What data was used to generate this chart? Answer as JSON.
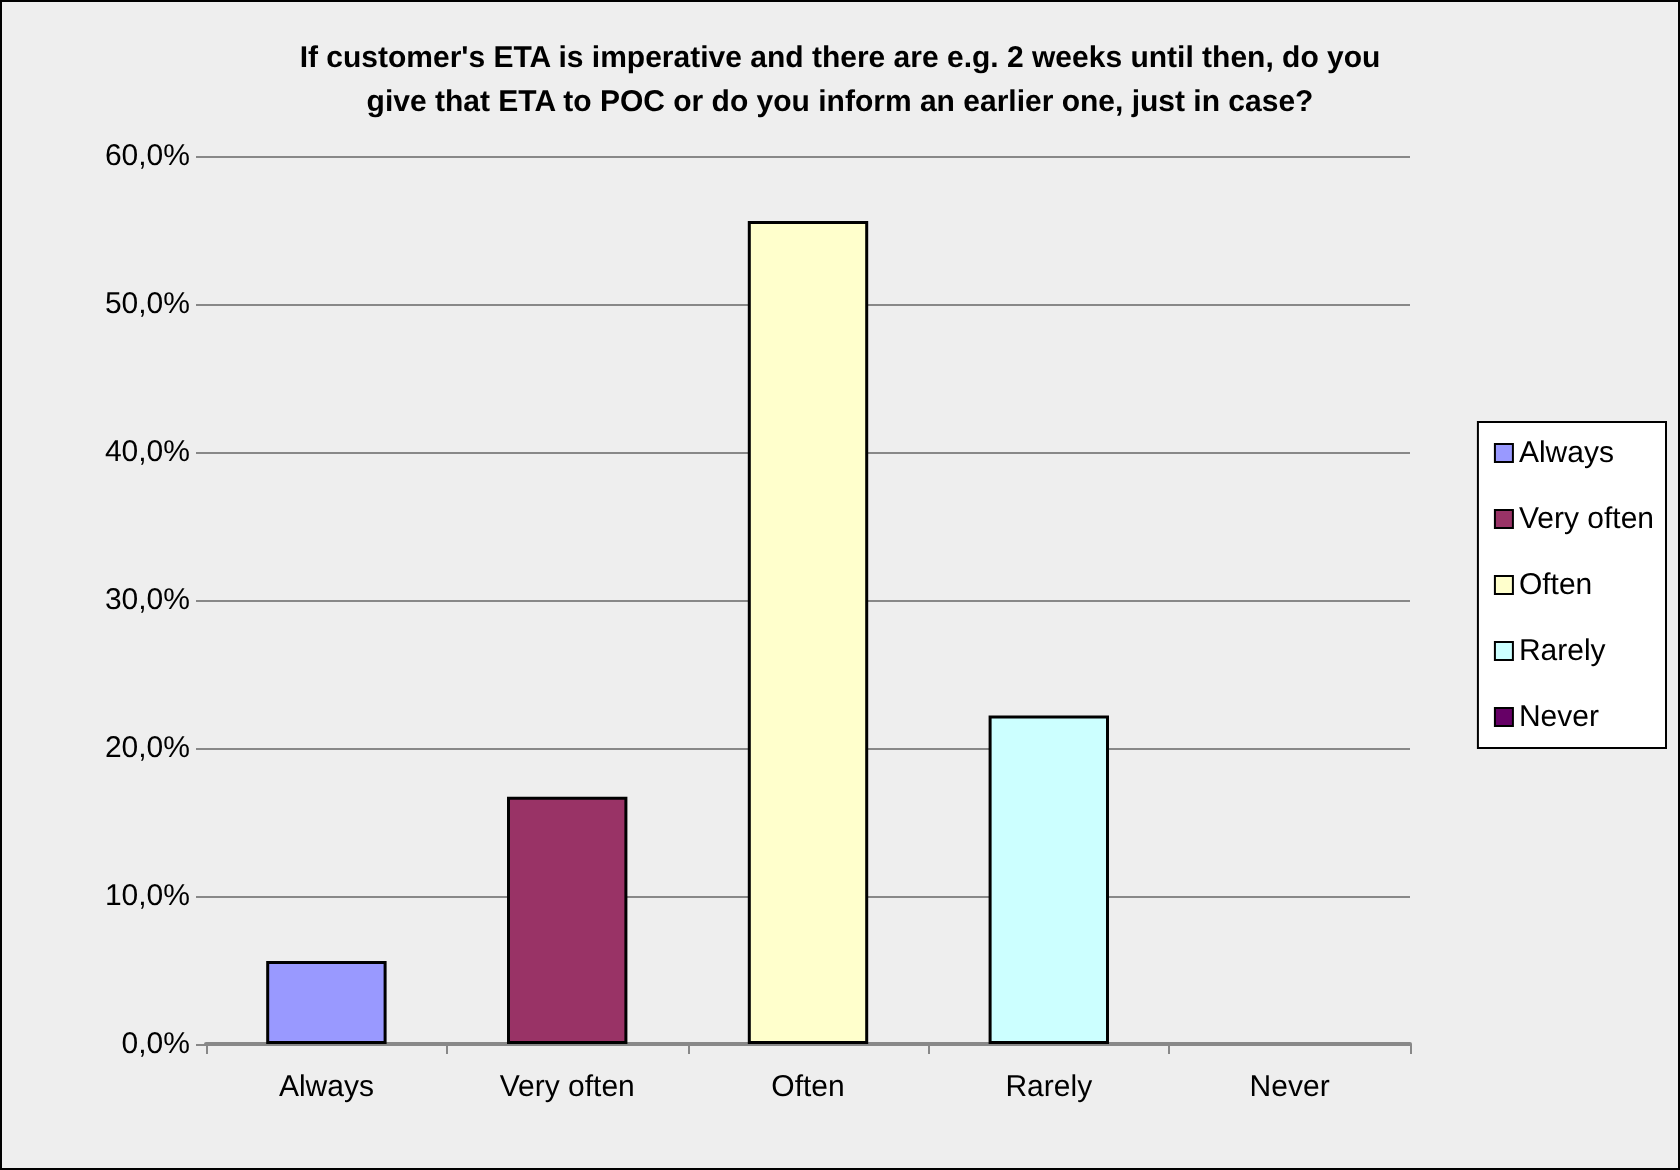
{
  "chart_data": {
    "type": "bar",
    "title": "If customer's ETA is imperative and there are e.g. 2 weeks until then, do you\ngive that ETA to POC or do you inform an earlier one, just in case?",
    "categories": [
      "Always",
      "Very often",
      "Often",
      "Rarely",
      "Never"
    ],
    "stacked": true,
    "series": [
      {
        "name": "Always",
        "color": "#9999ff",
        "values": [
          5.6,
          null,
          null,
          null,
          null
        ]
      },
      {
        "name": "Very often",
        "color": "#993366",
        "values": [
          null,
          16.7,
          null,
          null,
          null
        ]
      },
      {
        "name": "Often",
        "color": "#ffffcc",
        "values": [
          null,
          null,
          55.6,
          null,
          null
        ]
      },
      {
        "name": "Rarely",
        "color": "#ccffff",
        "values": [
          null,
          null,
          null,
          22.2,
          null
        ]
      },
      {
        "name": "Never",
        "color": "#660066",
        "values": [
          null,
          null,
          null,
          null,
          0
        ]
      }
    ],
    "ylim": [
      0,
      60
    ],
    "yticks": [
      {
        "value": 0,
        "label": "0,0%"
      },
      {
        "value": 10,
        "label": "10,0%"
      },
      {
        "value": 20,
        "label": "20,0%"
      },
      {
        "value": 30,
        "label": "30,0%"
      },
      {
        "value": 40,
        "label": "40,0%"
      },
      {
        "value": 50,
        "label": "50,0%"
      },
      {
        "value": 60,
        "label": "60,0%"
      }
    ],
    "grid": "y",
    "legend": "right"
  }
}
